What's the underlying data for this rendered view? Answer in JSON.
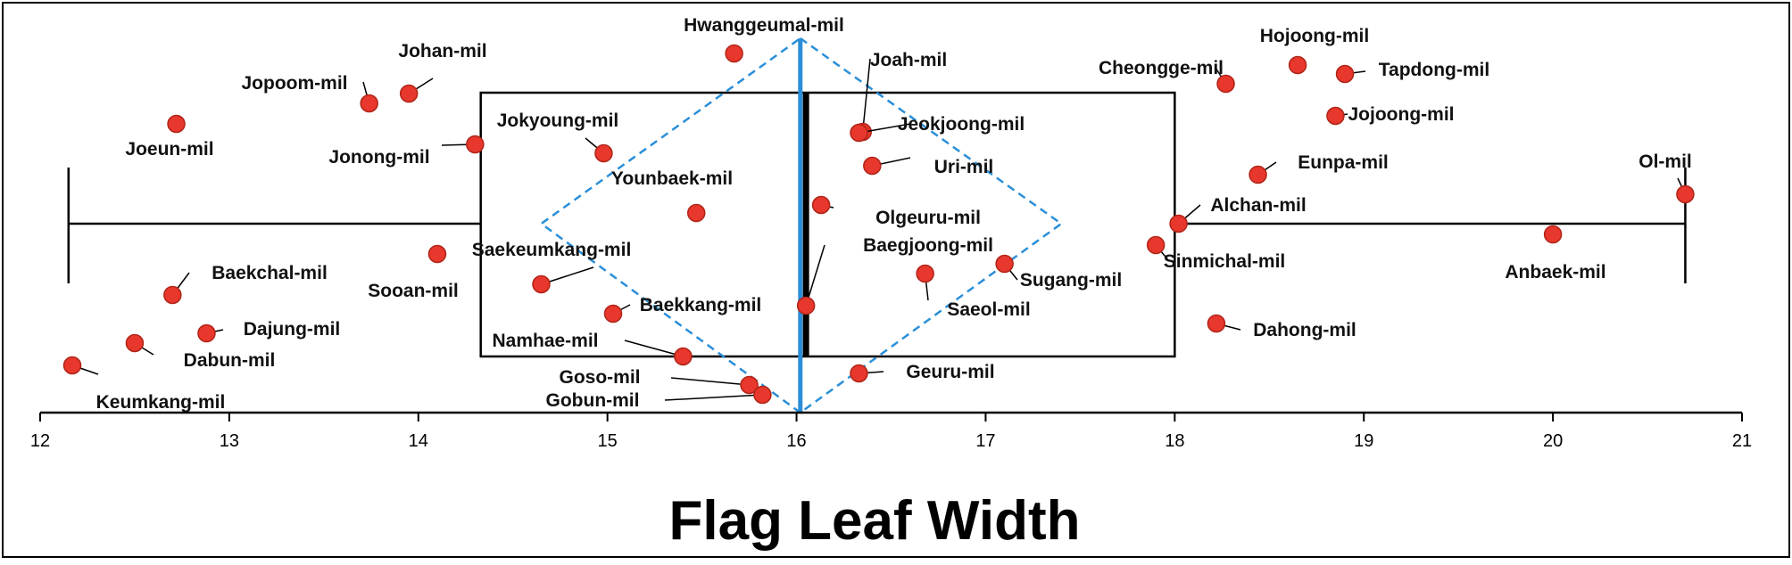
{
  "chart_data": {
    "type": "scatter",
    "xlabel": "Flag Leaf Width",
    "xlim": [
      12,
      21
    ],
    "xticks": [
      12,
      13,
      14,
      15,
      16,
      17,
      18,
      19,
      20,
      21
    ],
    "boxplot": {
      "whisker_low": 12.15,
      "q1": 14.33,
      "median": 16.05,
      "q3": 18.0,
      "whisker_high": 20.7,
      "mean": 16.02,
      "mean_diamond_low": 14.65,
      "mean_diamond_high": 17.4,
      "mean_color": "#2a8fd8"
    },
    "point_color": "#e8372c",
    "points": [
      {
        "name": "Hwanggeumal-mil",
        "x": 15.67
      },
      {
        "name": "Johan-mil",
        "x": 13.95
      },
      {
        "name": "Jopoom-mil",
        "x": 13.74
      },
      {
        "name": "Joeun-mil",
        "x": 12.72
      },
      {
        "name": "Jonong-mil",
        "x": 14.3
      },
      {
        "name": "Jokyoung-mil",
        "x": 14.98
      },
      {
        "name": "Younbaek-mil",
        "x": 15.47
      },
      {
        "name": "Saekeumkang-mil",
        "x": 14.65
      },
      {
        "name": "Sooan-mil",
        "x": 14.1
      },
      {
        "name": "Baekchal-mil",
        "x": 12.7
      },
      {
        "name": "Dajung-mil",
        "x": 12.88
      },
      {
        "name": "Dabun-mil",
        "x": 12.5
      },
      {
        "name": "Keumkang-mil",
        "x": 12.17
      },
      {
        "name": "Baekkang-mil",
        "x": 15.03
      },
      {
        "name": "Namhae-mil",
        "x": 15.4
      },
      {
        "name": "Goso-mil",
        "x": 15.75
      },
      {
        "name": "Gobun-mil",
        "x": 15.82
      },
      {
        "name": "Joah-mil",
        "x": 16.35
      },
      {
        "name": "Jeokjoong-mil",
        "x": 16.33
      },
      {
        "name": "Uri-mil",
        "x": 16.4
      },
      {
        "name": "Olgeuru-mil",
        "x": 16.13
      },
      {
        "name": "Baegjoong-mil",
        "x": 16.05
      },
      {
        "name": "Saeol-mil",
        "x": 16.68
      },
      {
        "name": "Sugang-mil",
        "x": 17.1
      },
      {
        "name": "Geuru-mil",
        "x": 16.33
      },
      {
        "name": "Cheongge-mil",
        "x": 18.27
      },
      {
        "name": "Hojoong-mil",
        "x": 18.65
      },
      {
        "name": "Tapdong-mil",
        "x": 18.9
      },
      {
        "name": "Jojoong-mil",
        "x": 18.85
      },
      {
        "name": "Eunpa-mil",
        "x": 18.44
      },
      {
        "name": "Alchan-mil",
        "x": 18.02
      },
      {
        "name": "Sinmichal-mil",
        "x": 17.9
      },
      {
        "name": "Dahong-mil",
        "x": 18.22
      },
      {
        "name": "Anbaek-mil",
        "x": 20.0
      },
      {
        "name": "Ol-mil",
        "x": 20.7
      }
    ]
  }
}
